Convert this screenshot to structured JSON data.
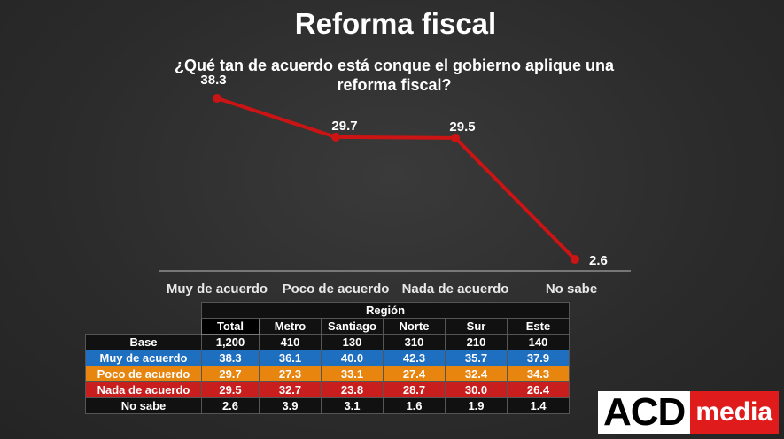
{
  "title": "Reforma fiscal",
  "subtitle": "¿Qué tan de acuerdo está conque el gobierno aplique una reforma fiscal?",
  "chart_data": {
    "type": "line",
    "title": "Reforma fiscal",
    "subtitle": "¿Qué tan de acuerdo está conque el gobierno aplique una reforma fiscal?",
    "categories": [
      "Muy de acuerdo",
      "Poco de acuerdo",
      "Nada de acuerdo",
      "No sabe"
    ],
    "values": [
      38.3,
      29.7,
      29.5,
      2.6
    ],
    "value_labels": [
      "38.3",
      "29.7",
      "29.5",
      "2.6"
    ],
    "ylim": [
      0,
      40
    ],
    "grid": false,
    "line_color": "#cc1414"
  },
  "table": {
    "group_header": "Región",
    "columns": [
      "Total",
      "Metro",
      "Santiago",
      "Norte",
      "Sur",
      "Este"
    ],
    "rows": [
      {
        "label": "Base",
        "values": [
          "1,200",
          "410",
          "130",
          "310",
          "210",
          "140"
        ]
      },
      {
        "label": "Muy de acuerdo",
        "values": [
          "38.3",
          "36.1",
          "40.0",
          "42.3",
          "35.7",
          "37.9"
        ]
      },
      {
        "label": "Poco de acuerdo",
        "values": [
          "29.7",
          "27.3",
          "33.1",
          "27.4",
          "32.4",
          "34.3"
        ]
      },
      {
        "label": "Nada de acuerdo",
        "values": [
          "29.5",
          "32.7",
          "23.8",
          "28.7",
          "30.0",
          "26.4"
        ]
      },
      {
        "label": "No sabe",
        "values": [
          "2.6",
          "3.9",
          "3.1",
          "1.6",
          "1.9",
          "1.4"
        ]
      }
    ]
  },
  "colors": {
    "muy": "#1f6fc1",
    "poco": "#e8850f",
    "nada": "#c81e1e",
    "line": "#cc1414"
  },
  "logo": {
    "part1": "ACD",
    "part2": "media"
  }
}
